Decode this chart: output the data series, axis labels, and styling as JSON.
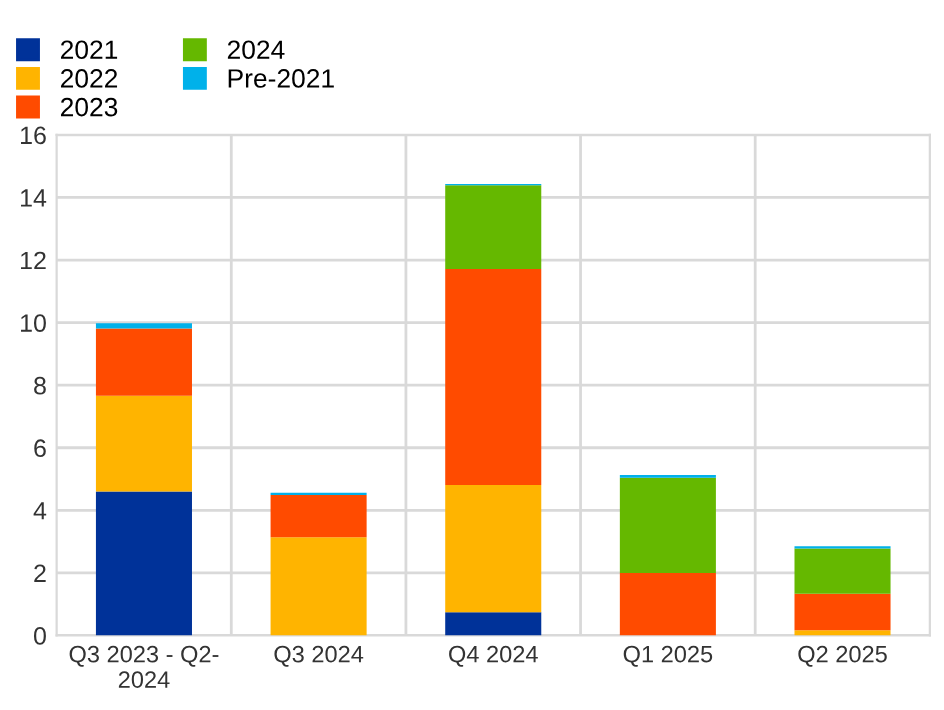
{
  "chart_data": {
    "type": "bar",
    "stacked": true,
    "categories": [
      "Q3 2023 - Q2-\n2024",
      "Q3 2024",
      "Q4 2024",
      "Q1 2025",
      "Q2 2025"
    ],
    "series": [
      {
        "name": "2021",
        "color": "#003299",
        "values": [
          4.6,
          null,
          0.74,
          null,
          null
        ]
      },
      {
        "name": "2022",
        "color": "#ffb400",
        "values": [
          3.06,
          3.14,
          4.07,
          null,
          0.17
        ]
      },
      {
        "name": "2023",
        "color": "#ff4b00",
        "values": [
          2.15,
          1.35,
          6.9,
          2.0,
          1.16
        ]
      },
      {
        "name": "2024",
        "color": "#65b800",
        "values": [
          null,
          null,
          2.68,
          3.04,
          1.45
        ]
      },
      {
        "name": "Pre-2021",
        "color": "#00b1ea",
        "values": [
          0.17,
          0.07,
          0.04,
          0.09,
          0.07
        ]
      }
    ],
    "ylim": [
      0,
      16
    ],
    "yticks": [
      0,
      2,
      4,
      6,
      8,
      10,
      12,
      14,
      16
    ],
    "grid": true,
    "legend": "top left"
  }
}
